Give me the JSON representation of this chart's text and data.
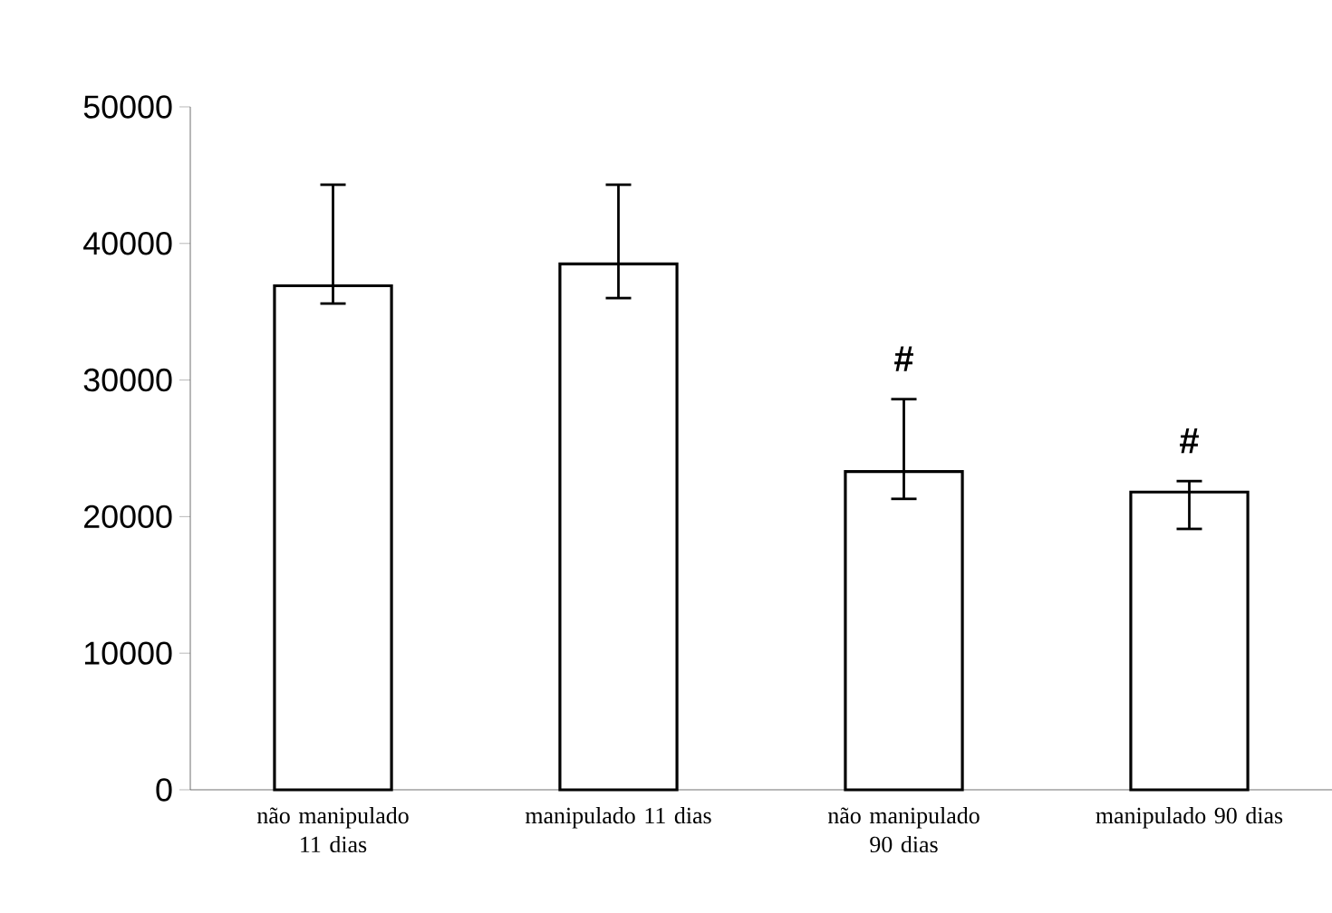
{
  "chart_data": {
    "type": "bar",
    "categories": [
      "não manipulado 11 dias",
      "manipulado 11 dias",
      "não manipulado 90 dias",
      "manipulado 90 dias"
    ],
    "values": [
      36900,
      38500,
      23300,
      21800
    ],
    "errors": [
      [
        35600,
        44300
      ],
      [
        36000,
        44300
      ],
      [
        21300,
        28600
      ],
      [
        19100,
        22600
      ]
    ],
    "color": "#ffffff",
    "ylim": [
      0,
      50000
    ],
    "yticks": [
      0,
      10000,
      20000,
      30000,
      40000,
      50000
    ],
    "grid": false,
    "annotations": [
      "#",
      "#"
    ]
  }
}
